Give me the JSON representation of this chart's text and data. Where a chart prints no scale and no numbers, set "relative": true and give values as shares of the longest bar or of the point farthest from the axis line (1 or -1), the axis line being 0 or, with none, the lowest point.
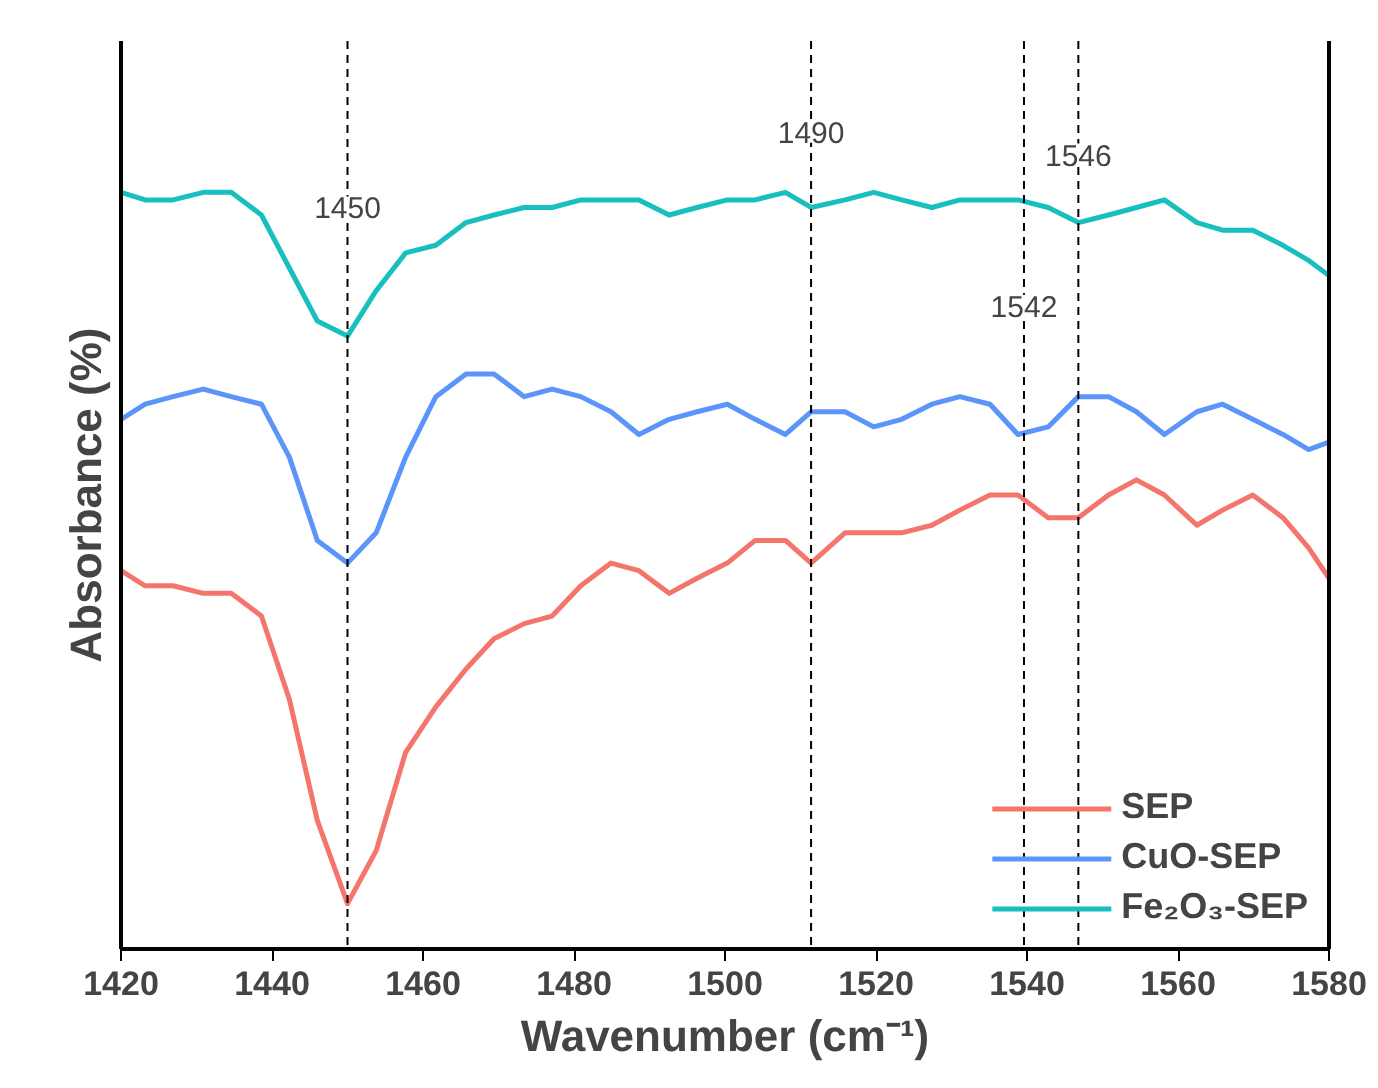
{
  "chart_data": {
    "type": "line",
    "xlabel": "Wavenumber (cm⁻¹)",
    "ylabel": "Absorbance (%)",
    "relative": true,
    "x": [
      1420,
      1423.2,
      1426.9,
      1430.9,
      1434.6,
      1438.6,
      1442.3,
      1446.0,
      1450.0,
      1453.8,
      1457.7,
      1461.7,
      1465.7,
      1469.4,
      1473.4,
      1477.1,
      1480.9,
      1484.9,
      1488.6,
      1492.6,
      1496.3,
      1500.3,
      1504.0,
      1508.0,
      1511.4,
      1515.9,
      1519.7,
      1523.4,
      1527.4,
      1531.1,
      1535.1,
      1538.8,
      1542.8,
      1546.8,
      1550.8,
      1554.5,
      1558.2,
      1562.5,
      1565.9,
      1569.9,
      1573.9,
      1577.3,
      1580
    ],
    "xlim": [
      1420,
      1580
    ],
    "xticks": [
      1420,
      1440,
      1460,
      1480,
      1500,
      1520,
      1540,
      1560,
      1580
    ],
    "series": [
      {
        "name": "SEP",
        "color": "#f4756b",
        "values": [
          0.5,
          0.48,
          0.48,
          0.47,
          0.47,
          0.44,
          0.33,
          0.17,
          0.06,
          0.13,
          0.26,
          0.32,
          0.37,
          0.41,
          0.43,
          0.44,
          0.48,
          0.51,
          0.5,
          0.47,
          0.49,
          0.51,
          0.54,
          0.54,
          0.51,
          0.55,
          0.55,
          0.55,
          0.56,
          0.58,
          0.6,
          0.6,
          0.57,
          0.57,
          0.6,
          0.62,
          0.6,
          0.56,
          0.58,
          0.6,
          0.57,
          0.53,
          0.49
        ]
      },
      {
        "name": "CuO-SEP",
        "color": "#5b95f9",
        "values": [
          0.7,
          0.72,
          0.73,
          0.74,
          0.73,
          0.72,
          0.65,
          0.54,
          0.51,
          0.55,
          0.65,
          0.73,
          0.76,
          0.76,
          0.73,
          0.74,
          0.73,
          0.71,
          0.68,
          0.7,
          0.71,
          0.72,
          0.7,
          0.68,
          0.71,
          0.71,
          0.69,
          0.7,
          0.72,
          0.73,
          0.72,
          0.68,
          0.69,
          0.73,
          0.73,
          0.71,
          0.68,
          0.71,
          0.72,
          0.7,
          0.68,
          0.66,
          0.67
        ]
      },
      {
        "name": "Fe₂O₃-SEP",
        "color": "#17bfbf",
        "values": [
          1.0,
          0.99,
          0.99,
          1.0,
          1.0,
          0.97,
          0.9,
          0.83,
          0.81,
          0.87,
          0.92,
          0.93,
          0.96,
          0.97,
          0.98,
          0.98,
          0.99,
          0.99,
          0.99,
          0.97,
          0.98,
          0.99,
          0.99,
          1.0,
          0.98,
          0.99,
          1.0,
          0.99,
          0.98,
          0.99,
          0.99,
          0.99,
          0.98,
          0.96,
          0.97,
          0.98,
          0.99,
          0.96,
          0.95,
          0.95,
          0.93,
          0.91,
          0.89
        ]
      }
    ],
    "ref_lines": [
      {
        "axis": "x",
        "value": 1450.0,
        "color": "#000000",
        "line_style": "dashed"
      },
      {
        "axis": "x",
        "value": 1511.4,
        "color": "#000000",
        "line_style": "dashed"
      },
      {
        "axis": "x",
        "value": 1546.8,
        "color": "#000000",
        "line_style": "dashed"
      },
      {
        "axis": "x",
        "value": 1539.6,
        "color": "#000000",
        "line_style": "dashed"
      }
    ],
    "annotations": [
      {
        "text": "1450",
        "x": 1450.0,
        "y": 0.98
      },
      {
        "text": "1490",
        "x": 1511.4,
        "y": 1.08
      },
      {
        "text": "1546",
        "x": 1546.8,
        "y": 1.05
      },
      {
        "text": "1542",
        "x": 1539.6,
        "y": 0.85
      }
    ],
    "legend": "bottom right",
    "grid": false,
    "line_style": "solid",
    "marker": "none"
  }
}
